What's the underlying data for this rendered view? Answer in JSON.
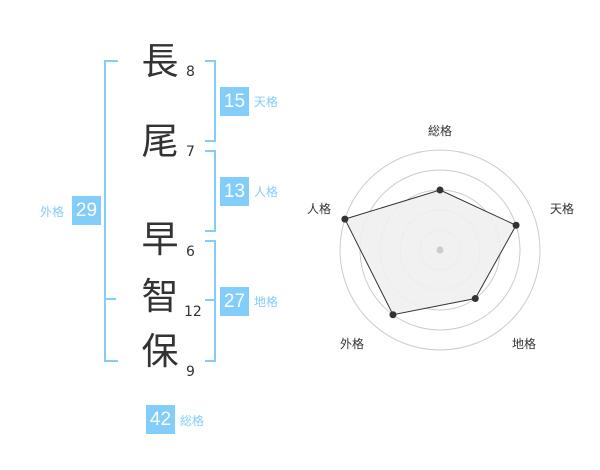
{
  "name": {
    "characters": [
      {
        "char": "長",
        "strokes": "8"
      },
      {
        "char": "尾",
        "strokes": "7"
      },
      {
        "char": "早",
        "strokes": "6"
      },
      {
        "char": "智",
        "strokes": "12"
      },
      {
        "char": "保",
        "strokes": "9"
      }
    ]
  },
  "kaku": {
    "tenkaku": {
      "label": "天格",
      "value": "15"
    },
    "jinkaku": {
      "label": "人格",
      "value": "13"
    },
    "chikaku": {
      "label": "地格",
      "value": "27"
    },
    "gaikaku": {
      "label": "外格",
      "value": "29"
    },
    "soukaku": {
      "label": "総格",
      "value": "42"
    }
  },
  "colors": {
    "accent": "#82cdf9",
    "text": "#333333",
    "radar_fill": "#f0f0f0"
  },
  "chart_data": {
    "type": "radar",
    "axes": [
      "総格",
      "天格",
      "地格",
      "外格",
      "人格"
    ],
    "values": [
      3,
      4,
      3,
      4,
      5
    ],
    "rmax": 5,
    "rings": 5
  }
}
